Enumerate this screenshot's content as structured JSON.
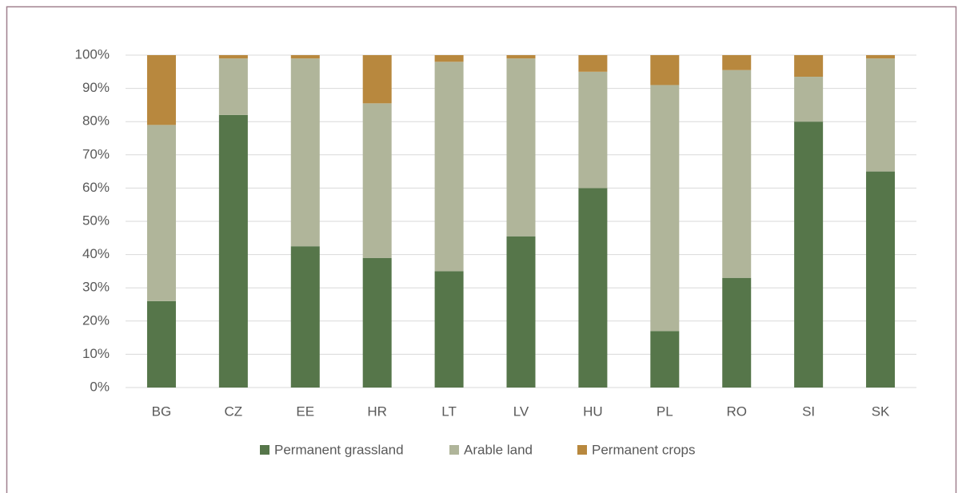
{
  "chart_data": {
    "type": "bar",
    "stacked": true,
    "categories": [
      "BG",
      "CZ",
      "EE",
      "HR",
      "LT",
      "LV",
      "HU",
      "PL",
      "RO",
      "SI",
      "SK"
    ],
    "series": [
      {
        "name": "Permanent grassland",
        "color": "#56764a",
        "values": [
          26,
          82,
          42.5,
          39,
          35,
          45.5,
          60,
          17,
          33,
          80,
          65
        ]
      },
      {
        "name": "Arable land",
        "color": "#b0b59a",
        "values": [
          53,
          17,
          56.5,
          46.5,
          63,
          53.5,
          35,
          74,
          62.5,
          13.5,
          34
        ]
      },
      {
        "name": "Permanent crops",
        "color": "#b8883e",
        "values": [
          21,
          1,
          1,
          14.5,
          2,
          1,
          5,
          9,
          4.5,
          6.5,
          1
        ]
      }
    ],
    "ylim": [
      0,
      100
    ],
    "yticks": [
      {
        "value": 0,
        "label": "0%"
      },
      {
        "value": 10,
        "label": "10%"
      },
      {
        "value": 20,
        "label": "20%"
      },
      {
        "value": 30,
        "label": "30%"
      },
      {
        "value": 40,
        "label": "40%"
      },
      {
        "value": 50,
        "label": "50%"
      },
      {
        "value": 60,
        "label": "60%"
      },
      {
        "value": 70,
        "label": "70%"
      },
      {
        "value": 80,
        "label": "80%"
      },
      {
        "value": 90,
        "label": "90%"
      },
      {
        "value": 100,
        "label": "100%"
      }
    ],
    "grid": true,
    "legend": "bottom"
  }
}
